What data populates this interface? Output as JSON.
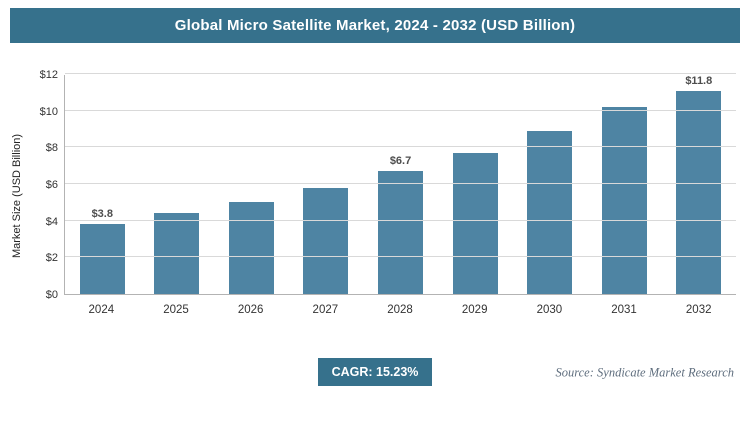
{
  "chart_data": {
    "type": "bar",
    "title": "Global Micro Satellite Market, 2024 - 2032 (USD Billion)",
    "categories": [
      "2024",
      "2025",
      "2026",
      "2027",
      "2028",
      "2029",
      "2030",
      "2031",
      "2032"
    ],
    "values": [
      3.8,
      4.4,
      5.0,
      5.8,
      6.7,
      7.7,
      8.9,
      10.2,
      11.8
    ],
    "data_labels": [
      "$3.8",
      null,
      null,
      null,
      "$6.7",
      null,
      null,
      null,
      "$11.8"
    ],
    "ylabel": "Market Size (USD Billion)",
    "xlabel": "",
    "ylim": [
      0,
      12
    ],
    "yticks": [
      0,
      2,
      4,
      6,
      8,
      10,
      12
    ],
    "ytick_labels": [
      "$0",
      "$2",
      "$4",
      "$6",
      "$8",
      "$10",
      "$12"
    ],
    "grid": true,
    "legend": "none"
  },
  "footer": {
    "cagr": "CAGR: 15.23%",
    "source": "Source: Syndicate Market Research"
  },
  "colors": {
    "header_bg": "#36718c",
    "bar": "#4e84a3",
    "badge_bg": "#36718c",
    "grid": "#d9d9d9",
    "axis": "#b3b3b3"
  }
}
